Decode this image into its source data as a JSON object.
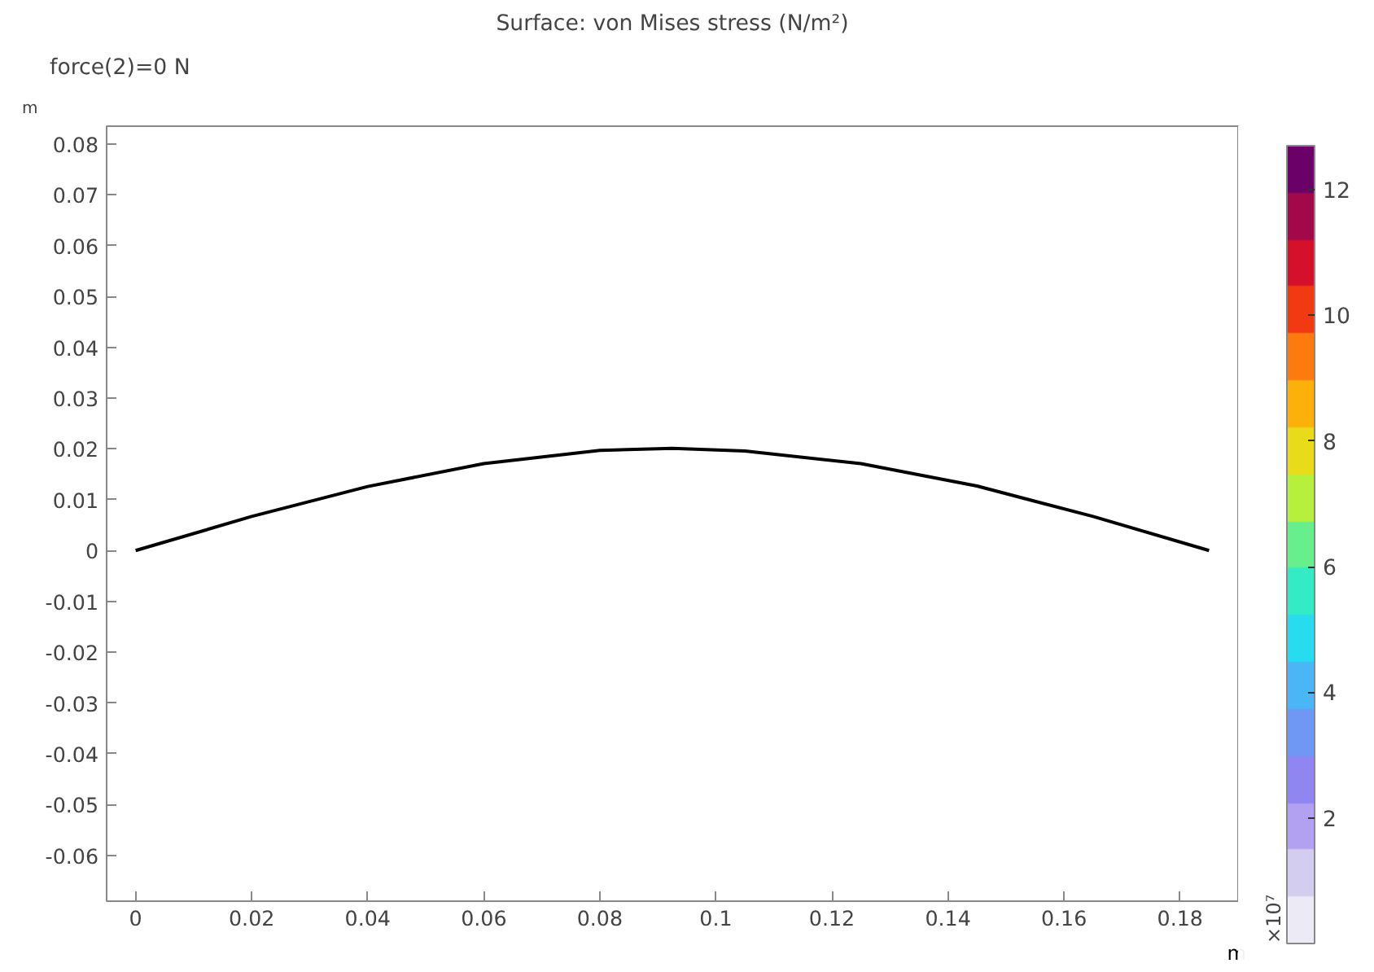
{
  "chart_data": {
    "type": "line",
    "title": "Surface: von Mises stress (N/m²)",
    "subtitle": "force(2)=0 N",
    "xlabel": "m",
    "ylabel": "m",
    "clabel": "×10⁷",
    "x": [
      0,
      0.02,
      0.04,
      0.06,
      0.08,
      0.0925,
      0.105,
      0.125,
      0.145,
      0.165,
      0.185
    ],
    "series": [
      {
        "color": "#000000",
        "values": [
          0,
          0.0067,
          0.0126,
          0.0171,
          0.0197,
          0.0201,
          0.0196,
          0.0171,
          0.0127,
          0.0067,
          0
        ]
      }
    ],
    "xlim": [
      -0.005,
      0.19
    ],
    "ylim": [
      -0.069,
      0.0835
    ],
    "xticks": [
      0,
      0.02,
      0.04,
      0.06,
      0.08,
      0.1,
      0.12,
      0.14,
      0.16,
      0.18
    ],
    "yticks": [
      -0.06,
      -0.05,
      -0.04,
      -0.03,
      -0.02,
      -0.01,
      0,
      0.01,
      0.02,
      0.03,
      0.04,
      0.05,
      0.06,
      0.07,
      0.08
    ],
    "clim": [
      0,
      12.7
    ],
    "cticks": [
      2,
      4,
      6,
      8,
      10,
      12
    ],
    "grid": false,
    "marker": "none",
    "line_style": "solid"
  }
}
